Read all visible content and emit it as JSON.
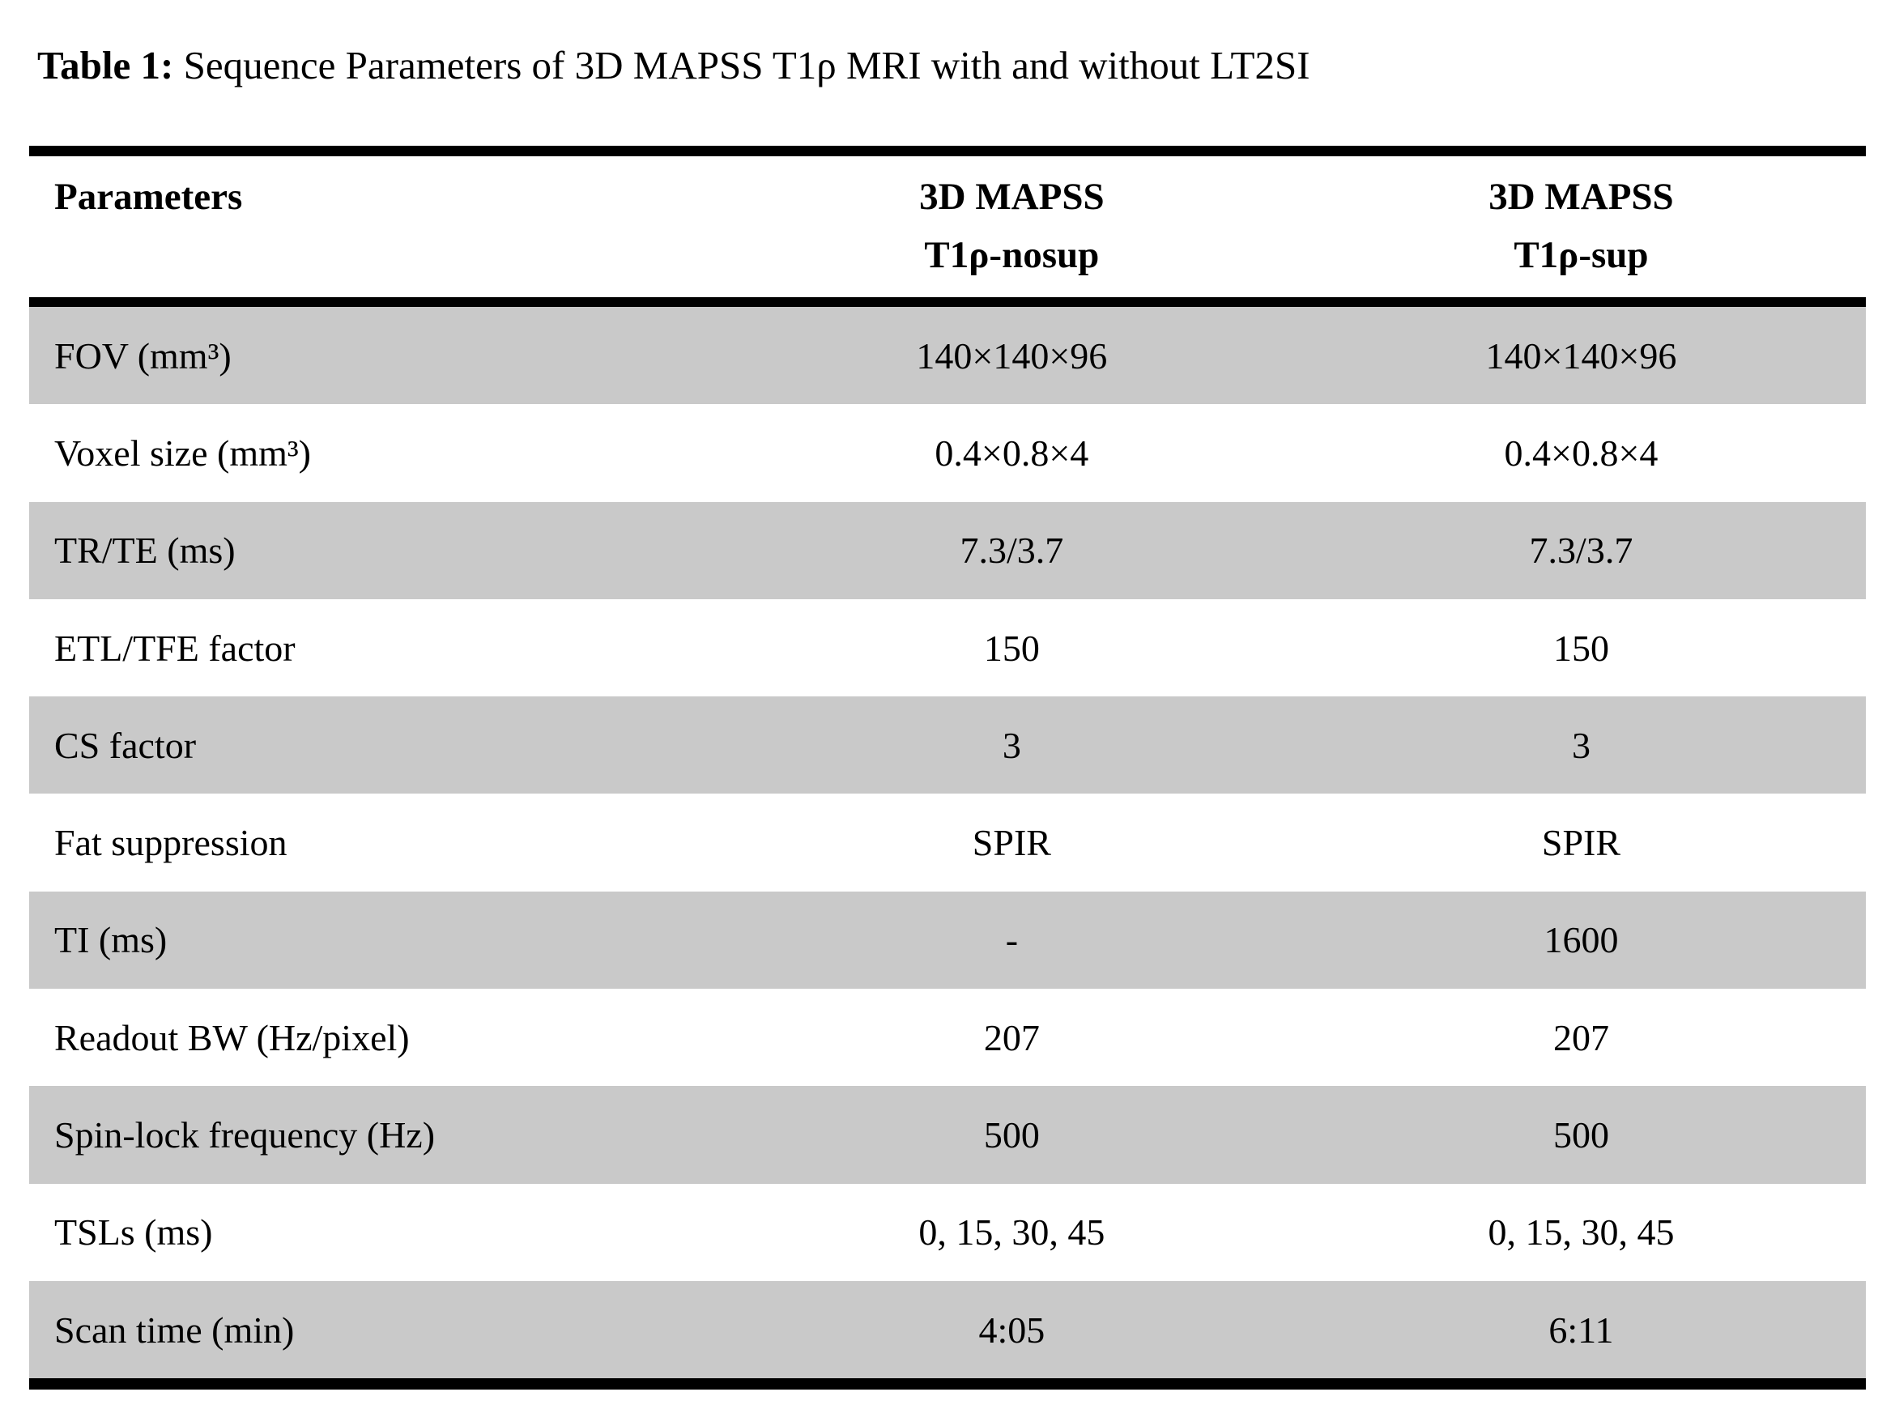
{
  "caption": {
    "label": "Table 1:",
    "text": "Sequence Parameters of 3D MAPSS T1ρ MRI with and without LT2SI"
  },
  "table": {
    "header": {
      "col1": "Parameters",
      "col2_line1": "3D MAPSS",
      "col2_line2": "T1ρ-nosup",
      "col3_line1": "3D MAPSS",
      "col3_line2": "T1ρ-sup"
    },
    "rows": [
      {
        "parameter": "FOV (mm³)",
        "nosup": "140×140×96",
        "sup": "140×140×96"
      },
      {
        "parameter": "Voxel size (mm³)",
        "nosup": "0.4×0.8×4",
        "sup": "0.4×0.8×4"
      },
      {
        "parameter": "TR/TE (ms)",
        "nosup": "7.3/3.7",
        "sup": "7.3/3.7"
      },
      {
        "parameter": "ETL/TFE factor",
        "nosup": "150",
        "sup": "150"
      },
      {
        "parameter": "CS factor",
        "nosup": "3",
        "sup": "3"
      },
      {
        "parameter": "Fat suppression",
        "nosup": "SPIR",
        "sup": "SPIR"
      },
      {
        "parameter": "TI (ms)",
        "nosup": "-",
        "sup": "1600"
      },
      {
        "parameter": "Readout BW (Hz/pixel)",
        "nosup": "207",
        "sup": "207"
      },
      {
        "parameter": "Spin-lock frequency (Hz)",
        "nosup": "500",
        "sup": "500"
      },
      {
        "parameter": "TSLs (ms)",
        "nosup": "0, 15, 30, 45",
        "sup": "0, 15, 30, 45"
      },
      {
        "parameter": "Scan time (min)",
        "nosup": "4:05",
        "sup": "6:11"
      }
    ],
    "colors": {
      "row_shade": "#c9c9c9",
      "rule": "#000000",
      "background": "#ffffff"
    }
  }
}
